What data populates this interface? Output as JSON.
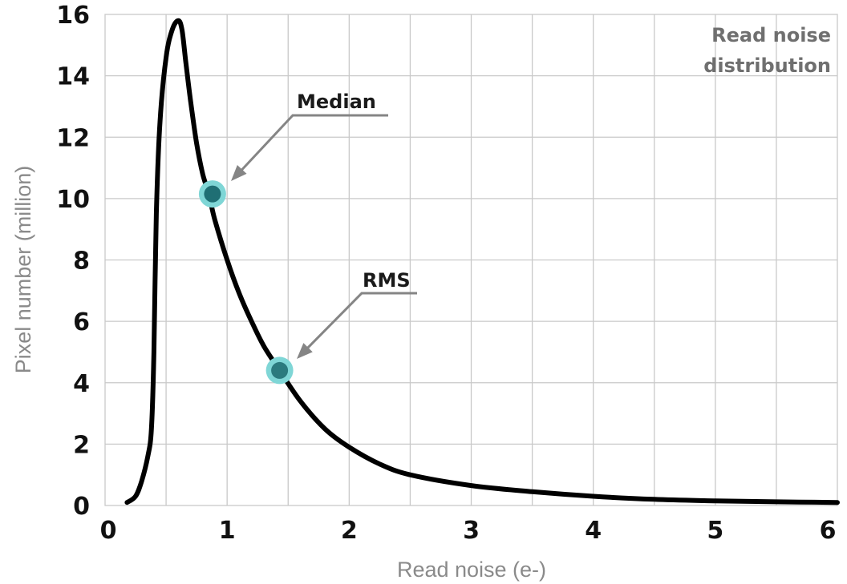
{
  "chart_data": {
    "type": "line",
    "title": "Read noise distribution",
    "title_lines": [
      "Read noise",
      "distribution"
    ],
    "title_position": "top-right",
    "xlabel": "Read noise (e-)",
    "ylabel": "Pixel number (million)",
    "xlim": [
      0,
      6
    ],
    "ylim": [
      0,
      16
    ],
    "x_grid_step": 0.5,
    "y_grid_step": 2,
    "x_ticks": [
      "0",
      "1",
      "2",
      "3",
      "4",
      "5",
      "6"
    ],
    "y_ticks": [
      "0",
      "2",
      "4",
      "6",
      "8",
      "10",
      "12",
      "14",
      "16"
    ],
    "grid": true,
    "series": [
      {
        "color": "#000000",
        "x": [
          0.18,
          0.25,
          0.3,
          0.35,
          0.38,
          0.4,
          0.42,
          0.45,
          0.5,
          0.55,
          0.6,
          0.63,
          0.66,
          0.7,
          0.75,
          0.8,
          0.85,
          0.9,
          1.0,
          1.1,
          1.2,
          1.3,
          1.43,
          1.6,
          1.8,
          2.0,
          2.25,
          2.5,
          3.0,
          3.5,
          4.0,
          4.5,
          5.0,
          5.5,
          6.0
        ],
        "y": [
          0.1,
          0.3,
          0.8,
          1.6,
          2.5,
          5.0,
          9.5,
          12.5,
          14.6,
          15.5,
          15.8,
          15.5,
          14.5,
          13.2,
          11.8,
          10.8,
          10.15,
          9.3,
          8.0,
          6.9,
          6.0,
          5.2,
          4.4,
          3.4,
          2.5,
          1.9,
          1.35,
          1.0,
          0.65,
          0.45,
          0.3,
          0.2,
          0.15,
          0.12,
          0.1
        ]
      }
    ],
    "annotations": [
      {
        "label": "Median",
        "x": 0.88,
        "y": 10.15,
        "marker_color": "#1f6f74",
        "halo_color": "#7fd6d6"
      },
      {
        "label": "RMS",
        "x": 1.43,
        "y": 4.4,
        "marker_color": "#2b7a7e",
        "halo_color": "#7fd6d6"
      }
    ]
  }
}
